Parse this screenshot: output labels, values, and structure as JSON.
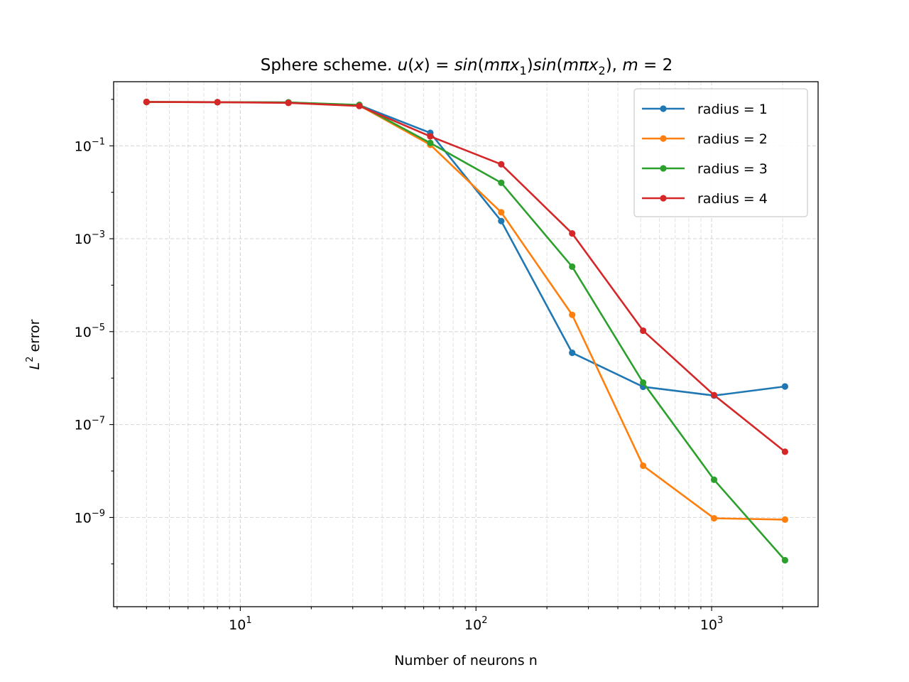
{
  "chart_data": {
    "type": "line",
    "title": {
      "prefix": "Sphere scheme.",
      "u": "u",
      "x": "x",
      "eq": "=",
      "sin": "sin",
      "m": "m",
      "pi": "π",
      "sub1": "1",
      "sub2": "2",
      "m_value": "2"
    },
    "xlabel": "Number of neurons n",
    "ylabel": {
      "base": "L",
      "sup": "2",
      "rest": " error"
    },
    "x_scale": "log",
    "y_scale": "log",
    "xlim": [
      2.9,
      2830
    ],
    "ylim": [
      1.2e-11,
      2.4
    ],
    "x_major_ticks": [
      {
        "value": 10,
        "base": "10",
        "exp": "1"
      },
      {
        "value": 100,
        "base": "10",
        "exp": "2"
      },
      {
        "value": 1000,
        "base": "10",
        "exp": "3"
      }
    ],
    "y_major_ticks": [
      {
        "value": 0.1,
        "base": "10",
        "exp": "−1"
      },
      {
        "value": 0.001,
        "base": "10",
        "exp": "−3"
      },
      {
        "value": 1e-05,
        "base": "10",
        "exp": "−5"
      },
      {
        "value": 1e-07,
        "base": "10",
        "exp": "−7"
      },
      {
        "value": 1e-09,
        "base": "10",
        "exp": "−9"
      }
    ],
    "grid": true,
    "legend_position": "top-right",
    "x": [
      4,
      8,
      16,
      32,
      64,
      128,
      256,
      512,
      1024,
      2048
    ],
    "series": [
      {
        "name": "radius = 1",
        "color": "#1f77b4",
        "values": [
          0.88,
          0.87,
          0.86,
          0.75,
          0.19,
          0.0024,
          3.5e-06,
          6.5e-07,
          4.2e-07,
          6.6e-07
        ]
      },
      {
        "name": "radius = 2",
        "color": "#ff7f0e",
        "values": [
          0.88,
          0.87,
          0.85,
          0.74,
          0.105,
          0.0037,
          2.3e-05,
          1.3e-08,
          9.6e-10,
          9e-10
        ]
      },
      {
        "name": "radius = 3",
        "color": "#2ca02c",
        "values": [
          0.88,
          0.87,
          0.86,
          0.76,
          0.115,
          0.016,
          0.00025,
          8e-07,
          6.5e-09,
          1.2e-10
        ]
      },
      {
        "name": "radius = 4",
        "color": "#d62728",
        "values": [
          0.88,
          0.87,
          0.84,
          0.72,
          0.16,
          0.04,
          0.0013,
          1.05e-05,
          4.3e-07,
          2.6e-08
        ]
      }
    ]
  }
}
